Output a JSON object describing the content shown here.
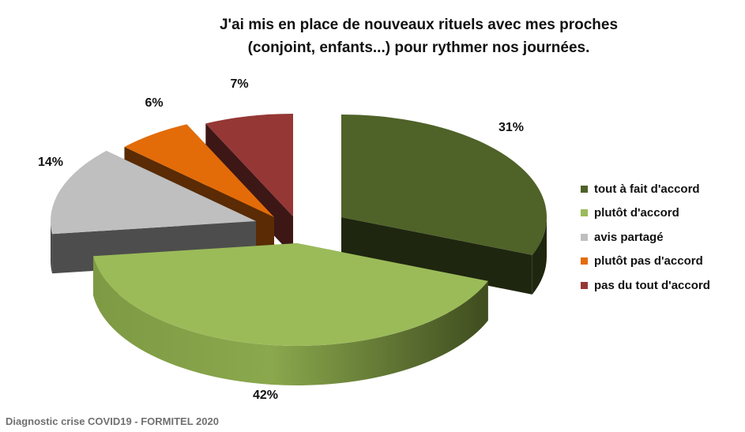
{
  "chart_data": {
    "type": "pie",
    "title_lines": [
      "J'ai mis en place de nouveaux rituels avec mes proches",
      "(conjoint, enfants...) pour rythmer nos journées."
    ],
    "categories": [
      "tout à fait d'accord",
      "plutôt d'accord",
      "avis partagé",
      "plutôt pas d'accord",
      "pas du tout d'accord"
    ],
    "values": [
      31,
      42,
      14,
      6,
      7
    ],
    "value_labels": [
      "31%",
      "42%",
      "14%",
      "6%",
      "7%"
    ],
    "colors": [
      "#4f6228",
      "#9bbb59",
      "#bfbfbf",
      "#e36c09",
      "#953735"
    ],
    "side_colors": [
      "#1f260f",
      "#4a5a2a",
      "#4d4d4d",
      "#5a2b04",
      "#3d1716"
    ],
    "style": "3d-exploded",
    "legend_position": "right"
  },
  "footer": "Diagnostic crise COVID19 - FORMITEL 2020"
}
